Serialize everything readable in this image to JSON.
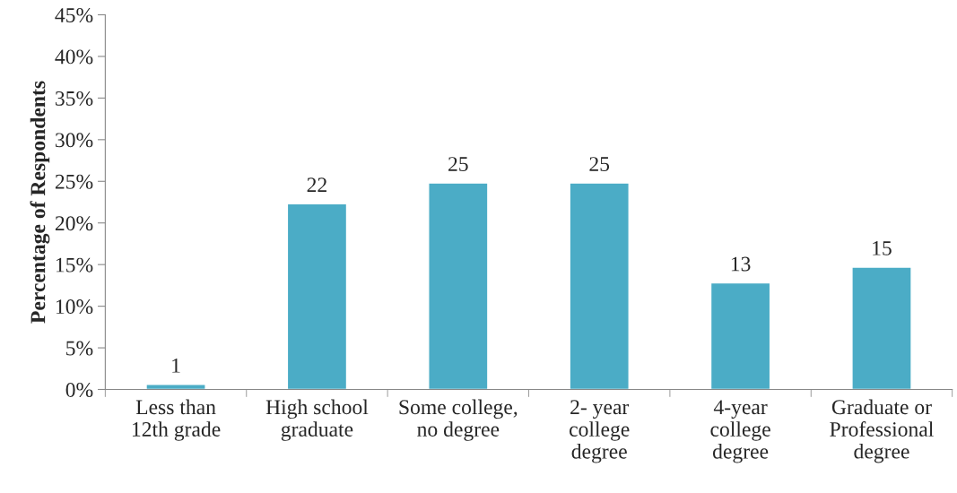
{
  "chart_data": {
    "type": "bar",
    "ylabel": "Percentage of Respondents",
    "categories": [
      "Less than\n12th grade",
      "High school\ngraduate",
      "Some college,\nno degree",
      "2- year\ncollege\ndegree",
      "4-year\ncollege\ndegree",
      "Graduate or\nProfessional\ndegree"
    ],
    "series": [
      {
        "color": "#4bacc6",
        "values": [
          0.6,
          22.3,
          24.8,
          24.8,
          12.8,
          14.7
        ],
        "value_labels": [
          "1",
          "22",
          "25",
          "25",
          "13",
          "15"
        ]
      }
    ],
    "ylim": [
      0,
      45
    ],
    "yticks": [
      {
        "value": 0,
        "label": "0%"
      },
      {
        "value": 5,
        "label": "5%"
      },
      {
        "value": 10,
        "label": "10%"
      },
      {
        "value": 15,
        "label": "15%"
      },
      {
        "value": 20,
        "label": "20%"
      },
      {
        "value": 25,
        "label": "25%"
      },
      {
        "value": 30,
        "label": "30%"
      },
      {
        "value": 35,
        "label": "35%"
      },
      {
        "value": 40,
        "label": "40%"
      },
      {
        "value": 45,
        "label": "45%"
      }
    ],
    "grid": false,
    "legend": false
  }
}
